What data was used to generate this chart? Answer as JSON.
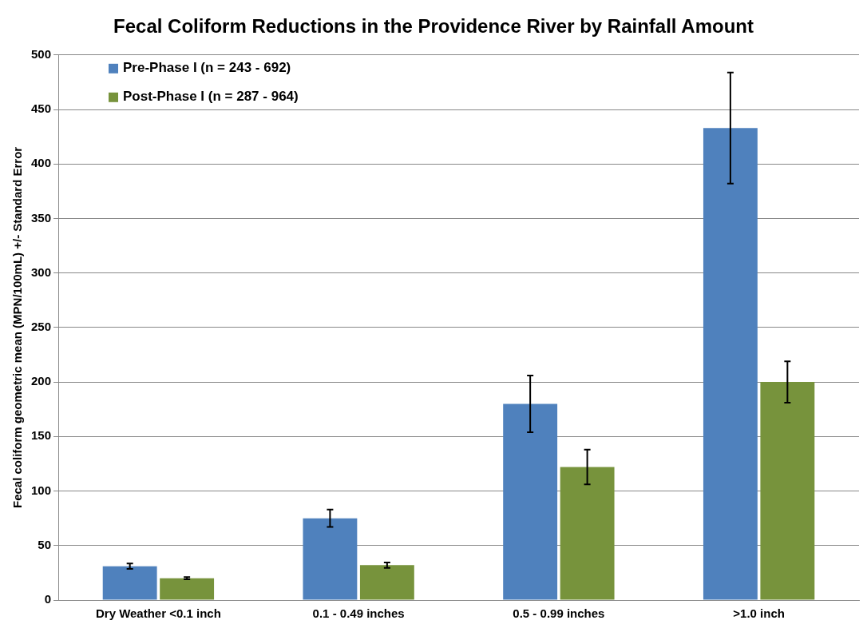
{
  "chart_data": {
    "type": "bar",
    "title": "Fecal Coliform Reductions in the Providence River by Rainfall Amount",
    "ylabel": "Fecal coliform geometric mean (MPN/100mL) +/- Standard Error",
    "categories": [
      "Dry Weather <0.1 inch",
      "0.1 - 0.49 inches",
      "0.5 - 0.99 inches",
      ">1.0 inch"
    ],
    "series": [
      {
        "name": "Pre-Phase I (n = 243 - 692)",
        "color": "#4f81bd",
        "values": [
          31,
          75,
          180,
          433
        ],
        "errors": [
          2.5,
          8,
          26,
          51
        ]
      },
      {
        "name": "Post-Phase I (n = 287 - 964)",
        "color": "#77933c",
        "values": [
          20,
          32,
          122,
          200
        ],
        "errors": [
          1,
          2.5,
          16,
          19
        ]
      }
    ],
    "ylim": [
      0,
      500
    ],
    "yticks": [
      0,
      50,
      100,
      150,
      200,
      250,
      300,
      350,
      400,
      450,
      500
    ],
    "grid": "y",
    "legend": "top left"
  }
}
